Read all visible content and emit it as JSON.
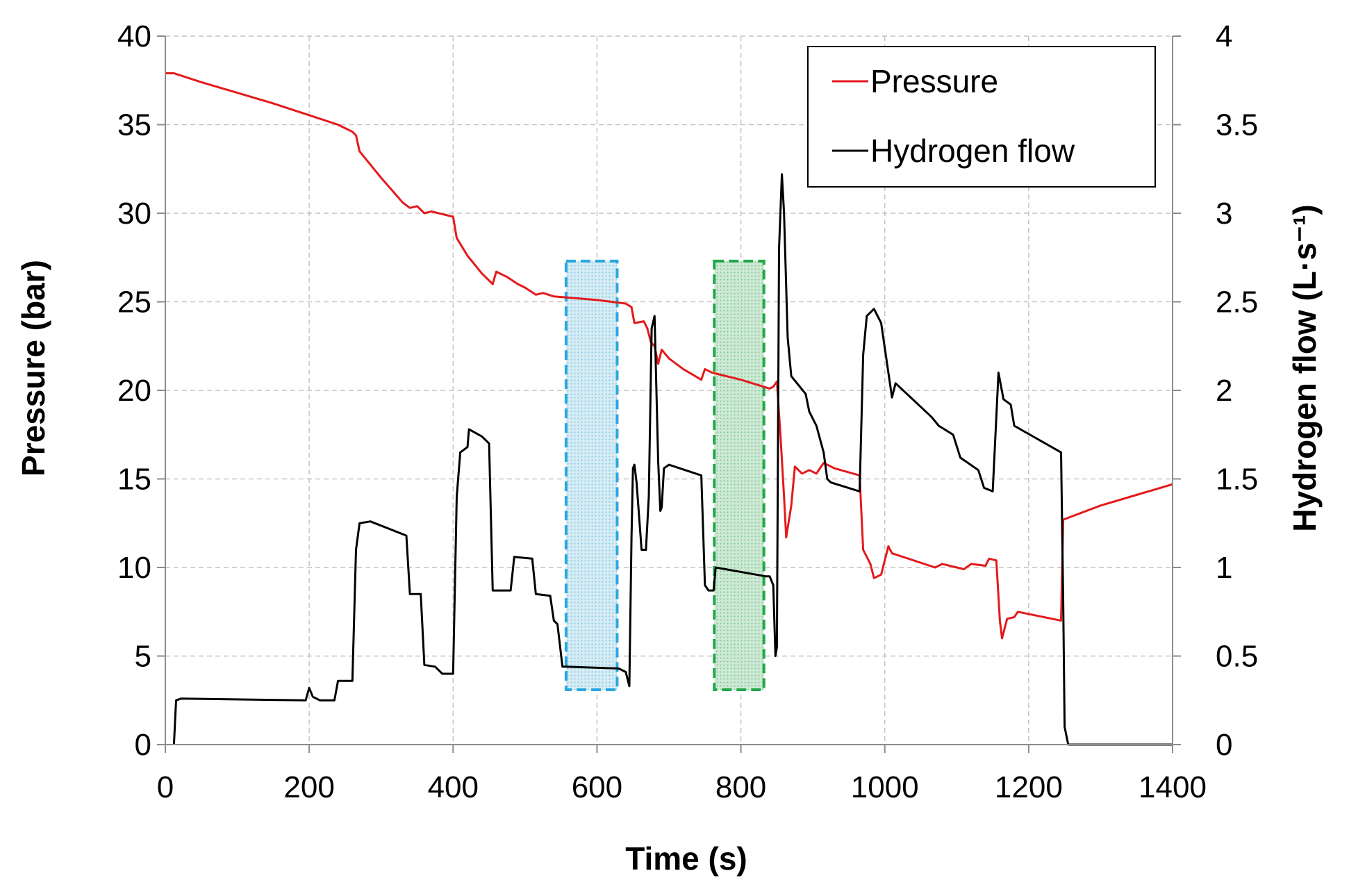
{
  "chart_data": {
    "type": "line",
    "title": "",
    "xlabel": "Time (s)",
    "ylabel_left": "Pressure (bar)",
    "ylabel_right": "Hydrogen flow (L·s⁻¹)",
    "xlim": [
      0,
      1400
    ],
    "ylim_left": [
      0,
      40
    ],
    "ylim_right": [
      0,
      4
    ],
    "x_ticks": [
      0,
      200,
      400,
      600,
      800,
      1000,
      1200,
      1400
    ],
    "y_ticks_left": [
      0,
      5,
      10,
      15,
      20,
      25,
      30,
      35,
      40
    ],
    "y_ticks_right": [
      "0",
      "0.5",
      "1",
      "1.5",
      "2",
      "2.5",
      "3",
      "3.5",
      "4"
    ],
    "grid": true,
    "legend_position": "top-right",
    "series": [
      {
        "name": "Pressure",
        "axis": "left",
        "color": "#e31a1c",
        "points": [
          [
            0,
            37.9
          ],
          [
            12,
            37.9
          ],
          [
            50,
            37.4
          ],
          [
            100,
            36.8
          ],
          [
            150,
            36.2
          ],
          [
            195,
            35.6
          ],
          [
            240,
            35.0
          ],
          [
            260,
            34.6
          ],
          [
            265,
            34.4
          ],
          [
            270,
            33.5
          ],
          [
            300,
            32.0
          ],
          [
            330,
            30.6
          ],
          [
            340,
            30.3
          ],
          [
            350,
            30.4
          ],
          [
            360,
            30.0
          ],
          [
            370,
            30.1
          ],
          [
            400,
            29.8
          ],
          [
            405,
            28.6
          ],
          [
            420,
            27.6
          ],
          [
            440,
            26.6
          ],
          [
            455,
            26.0
          ],
          [
            460,
            26.7
          ],
          [
            475,
            26.4
          ],
          [
            490,
            26.0
          ],
          [
            500,
            25.8
          ],
          [
            515,
            25.4
          ],
          [
            525,
            25.5
          ],
          [
            540,
            25.3
          ],
          [
            600,
            25.1
          ],
          [
            640,
            24.9
          ],
          [
            648,
            24.7
          ],
          [
            652,
            23.8
          ],
          [
            665,
            23.9
          ],
          [
            670,
            23.5
          ],
          [
            675,
            22.7
          ],
          [
            680,
            22.5
          ],
          [
            685,
            21.5
          ],
          [
            690,
            22.3
          ],
          [
            700,
            21.8
          ],
          [
            720,
            21.2
          ],
          [
            745,
            20.6
          ],
          [
            750,
            21.2
          ],
          [
            760,
            21.0
          ],
          [
            800,
            20.6
          ],
          [
            840,
            20.1
          ],
          [
            845,
            20.2
          ],
          [
            850,
            20.5
          ],
          [
            855,
            17.5
          ],
          [
            860,
            14.0
          ],
          [
            863,
            11.7
          ],
          [
            870,
            13.5
          ],
          [
            875,
            15.7
          ],
          [
            885,
            15.3
          ],
          [
            895,
            15.5
          ],
          [
            905,
            15.3
          ],
          [
            915,
            15.9
          ],
          [
            930,
            15.6
          ],
          [
            965,
            15.2
          ],
          [
            970,
            11.0
          ],
          [
            980,
            10.2
          ],
          [
            985,
            9.4
          ],
          [
            995,
            9.6
          ],
          [
            1005,
            11.2
          ],
          [
            1010,
            10.8
          ],
          [
            1070,
            10.0
          ],
          [
            1080,
            10.2
          ],
          [
            1110,
            9.9
          ],
          [
            1120,
            10.2
          ],
          [
            1140,
            10.1
          ],
          [
            1145,
            10.5
          ],
          [
            1155,
            10.4
          ],
          [
            1160,
            7.0
          ],
          [
            1163,
            6.0
          ],
          [
            1170,
            7.1
          ],
          [
            1180,
            7.2
          ],
          [
            1185,
            7.5
          ],
          [
            1245,
            7.0
          ],
          [
            1248,
            12.7
          ],
          [
            1300,
            13.5
          ],
          [
            1350,
            14.1
          ],
          [
            1400,
            14.7
          ]
        ]
      },
      {
        "name": "Hydrogen flow",
        "axis": "right",
        "color": "#000000",
        "points": [
          [
            12,
            0
          ],
          [
            15,
            0.25
          ],
          [
            22,
            0.26
          ],
          [
            195,
            0.25
          ],
          [
            200,
            0.32
          ],
          [
            205,
            0.27
          ],
          [
            215,
            0.25
          ],
          [
            235,
            0.25
          ],
          [
            240,
            0.36
          ],
          [
            260,
            0.36
          ],
          [
            265,
            1.1
          ],
          [
            270,
            1.25
          ],
          [
            285,
            1.26
          ],
          [
            335,
            1.18
          ],
          [
            340,
            0.85
          ],
          [
            355,
            0.85
          ],
          [
            360,
            0.45
          ],
          [
            375,
            0.44
          ],
          [
            385,
            0.4
          ],
          [
            400,
            0.4
          ],
          [
            405,
            1.4
          ],
          [
            410,
            1.65
          ],
          [
            420,
            1.68
          ],
          [
            422,
            1.78
          ],
          [
            440,
            1.74
          ],
          [
            450,
            1.7
          ],
          [
            455,
            0.87
          ],
          [
            480,
            0.87
          ],
          [
            485,
            1.06
          ],
          [
            510,
            1.05
          ],
          [
            515,
            0.85
          ],
          [
            535,
            0.84
          ],
          [
            540,
            0.7
          ],
          [
            545,
            0.68
          ],
          [
            552,
            0.44
          ],
          [
            555,
            0.44
          ],
          [
            630,
            0.43
          ],
          [
            640,
            0.41
          ],
          [
            645,
            0.33
          ],
          [
            648,
            1.17
          ],
          [
            650,
            1.56
          ],
          [
            652,
            1.58
          ],
          [
            655,
            1.48
          ],
          [
            662,
            1.1
          ],
          [
            668,
            1.1
          ],
          [
            672,
            1.4
          ],
          [
            676,
            2.35
          ],
          [
            680,
            2.42
          ],
          [
            685,
            1.6
          ],
          [
            688,
            1.32
          ],
          [
            690,
            1.34
          ],
          [
            693,
            1.56
          ],
          [
            700,
            1.58
          ],
          [
            745,
            1.52
          ],
          [
            750,
            0.9
          ],
          [
            755,
            0.87
          ],
          [
            762,
            0.87
          ],
          [
            765,
            1.0
          ],
          [
            835,
            0.95
          ],
          [
            840,
            0.95
          ],
          [
            845,
            0.9
          ],
          [
            848,
            0.5
          ],
          [
            850,
            0.55
          ],
          [
            853,
            2.8
          ],
          [
            857,
            3.22
          ],
          [
            860,
            3.0
          ],
          [
            865,
            2.3
          ],
          [
            870,
            2.08
          ],
          [
            890,
            1.98
          ],
          [
            895,
            1.88
          ],
          [
            905,
            1.8
          ],
          [
            915,
            1.65
          ],
          [
            920,
            1.5
          ],
          [
            925,
            1.48
          ],
          [
            965,
            1.43
          ],
          [
            970,
            2.2
          ],
          [
            975,
            2.42
          ],
          [
            985,
            2.46
          ],
          [
            995,
            2.38
          ],
          [
            1005,
            2.1
          ],
          [
            1010,
            1.96
          ],
          [
            1015,
            2.04
          ],
          [
            1065,
            1.85
          ],
          [
            1075,
            1.8
          ],
          [
            1095,
            1.75
          ],
          [
            1105,
            1.62
          ],
          [
            1130,
            1.55
          ],
          [
            1138,
            1.45
          ],
          [
            1150,
            1.43
          ],
          [
            1155,
            1.85
          ],
          [
            1158,
            2.1
          ],
          [
            1165,
            1.95
          ],
          [
            1175,
            1.92
          ],
          [
            1180,
            1.8
          ],
          [
            1245,
            1.65
          ],
          [
            1248,
            0.8
          ],
          [
            1250,
            0.1
          ],
          [
            1255,
            0
          ],
          [
            1400,
            0
          ]
        ]
      }
    ],
    "highlight_regions": [
      {
        "x_range": [
          557,
          628
        ],
        "y_range": [
          3.1,
          27.3
        ],
        "border_color": "#2aa7e0",
        "fill_color": "#d7ecf3"
      },
      {
        "x_range": [
          763,
          832
        ],
        "y_range": [
          3.1,
          27.3
        ],
        "border_color": "#22a84a",
        "fill_color": "#cfe9d6"
      }
    ]
  }
}
